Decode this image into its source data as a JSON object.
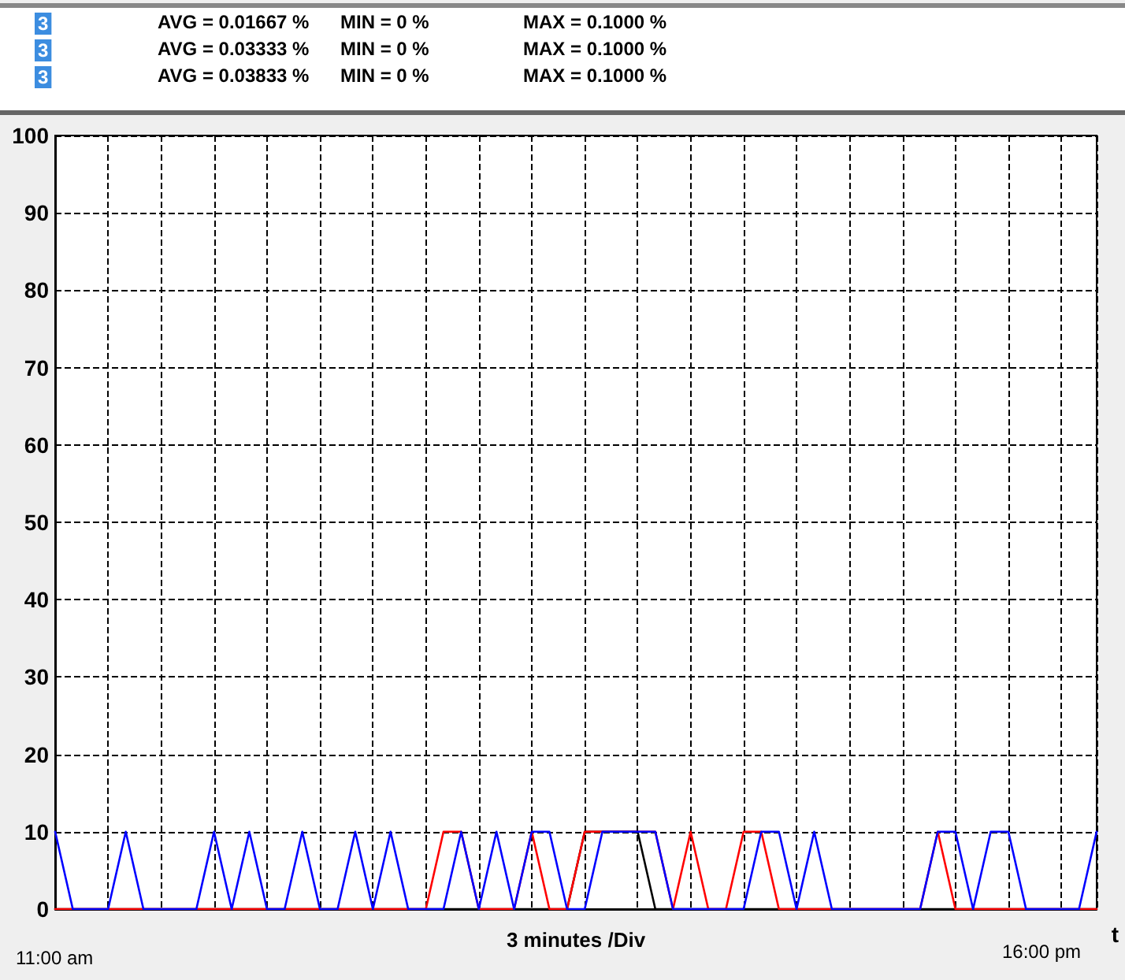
{
  "chart_data": {
    "type": "line",
    "xlabel": "3 minutes /Div",
    "annotations": [
      "3",
      "AVG = 0.01667 %",
      "MIN = 0 %",
      "MAX = 0.1000 %",
      "3",
      "AVG = 0.03333 %",
      "MIN = 0 %",
      "MAX = 0.1000 %",
      "3",
      "AVG = 0.03833 %",
      "MIN = 0 %",
      "MAX = 0.1000 %",
      "11:00 am",
      "16:00 pm",
      "t"
    ],
    "categories": [
      null,
      null,
      null,
      null,
      null,
      null,
      null,
      null,
      null,
      null,
      null,
      null,
      null,
      null,
      null,
      null,
      null,
      null,
      null,
      null,
      null,
      null,
      null,
      null,
      null,
      null,
      null,
      null,
      null,
      null,
      null,
      null,
      null,
      null,
      null,
      null,
      null,
      null,
      null,
      null,
      null,
      null,
      null,
      null,
      null,
      null,
      null,
      null,
      null,
      null,
      null,
      null,
      null,
      null,
      null,
      null,
      null,
      null,
      null,
      null
    ],
    "series": [
      {
        "color": "#000000",
        "values": [
          0,
          0,
          0,
          0,
          0,
          0,
          0,
          0,
          0,
          0,
          0,
          0,
          0,
          0,
          0,
          0,
          0,
          0,
          0,
          0,
          0,
          0,
          0,
          0,
          0,
          0,
          0,
          0,
          0,
          0,
          10,
          10,
          10,
          10,
          0,
          0,
          0,
          0,
          0,
          0,
          0,
          0,
          0,
          0,
          0,
          0,
          0,
          0,
          0,
          0,
          0,
          0,
          0,
          0,
          0,
          0,
          0,
          0,
          0,
          0
        ]
      },
      {
        "color": "#ff0000",
        "values": [
          0,
          0,
          0,
          0,
          0,
          0,
          0,
          0,
          0,
          0,
          0,
          0,
          0,
          0,
          0,
          0,
          0,
          0,
          0,
          0,
          0,
          0,
          10,
          10,
          0,
          0,
          0,
          10,
          0,
          0,
          10,
          10,
          10,
          10,
          10,
          0,
          10,
          0,
          0,
          10,
          10,
          0,
          0,
          0,
          0,
          0,
          0,
          0,
          0,
          0,
          10,
          0,
          0,
          0,
          0,
          0,
          0,
          0,
          0,
          0
        ]
      },
      {
        "color": "#0000ff",
        "values": [
          10,
          0,
          0,
          0,
          10,
          0,
          0,
          0,
          0,
          10,
          0,
          10,
          0,
          0,
          10,
          0,
          0,
          10,
          0,
          10,
          0,
          0,
          0,
          10,
          0,
          10,
          0,
          10,
          10,
          0,
          0,
          10,
          10,
          10,
          10,
          0,
          0,
          0,
          0,
          0,
          10,
          10,
          0,
          10,
          0,
          0,
          0,
          0,
          0,
          0,
          10,
          10,
          0,
          10,
          10,
          0,
          0,
          0,
          0,
          10
        ]
      }
    ],
    "ylim": [
      0,
      100
    ],
    "yticks": [
      0,
      10,
      20,
      30,
      40,
      50,
      60,
      70,
      80,
      90,
      100
    ],
    "grid": true
  }
}
